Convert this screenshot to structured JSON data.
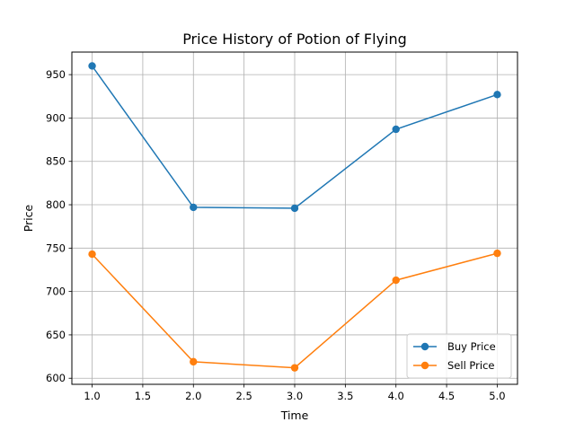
{
  "chart_data": {
    "type": "line",
    "title": "Price History of Potion of Flying",
    "xlabel": "Time",
    "ylabel": "Price",
    "x": [
      1.0,
      2.0,
      3.0,
      4.0,
      5.0
    ],
    "xlim": [
      0.8,
      5.2
    ],
    "ylim": [
      593,
      976
    ],
    "xticks": [
      "1.0",
      "1.5",
      "2.0",
      "2.5",
      "3.0",
      "3.5",
      "4.0",
      "4.5",
      "5.0"
    ],
    "yticks": [
      "600",
      "650",
      "700",
      "750",
      "800",
      "850",
      "900",
      "950"
    ],
    "grid": true,
    "legend_position": "lower-right",
    "series": [
      {
        "name": "Buy Price",
        "color": "#1f77b4",
        "values": [
          960,
          797,
          796,
          887,
          927
        ]
      },
      {
        "name": "Sell Price",
        "color": "#ff7f0e",
        "values": [
          743,
          619,
          612,
          713,
          744
        ]
      }
    ]
  }
}
